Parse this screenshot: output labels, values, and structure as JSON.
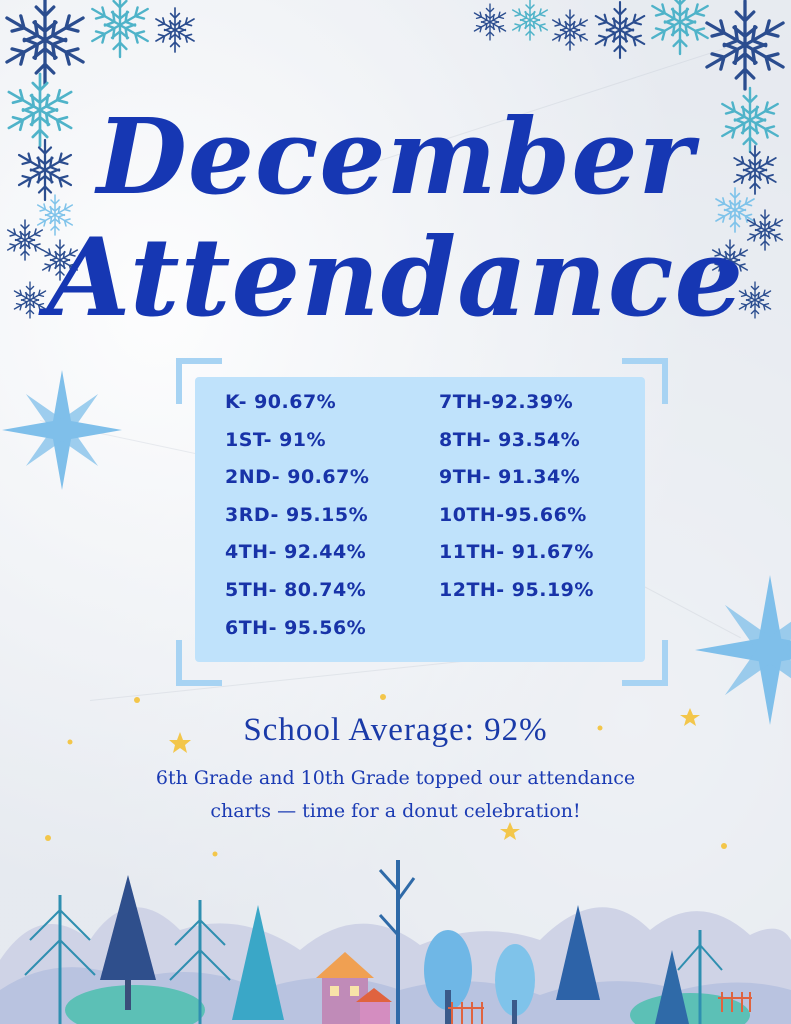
{
  "title": {
    "line1": "December",
    "line2": "Attendance"
  },
  "grades_left": [
    "K- 90.67%",
    "1ST- 91%",
    "2ND- 90.67%",
    "3RD- 95.15%",
    "4TH- 92.44%",
    "5TH- 80.74%",
    "6TH- 95.56%"
  ],
  "grades_right": [
    "7TH-92.39%",
    "8TH- 93.54%",
    "9TH- 91.34%",
    "10TH-95.66%",
    "11TH- 91.67%",
    "12TH- 95.19%"
  ],
  "school_average": "School Average: 92%",
  "note": {
    "line1": "6th Grade and 10th Grade topped our attendance",
    "line2": "charts — time for a donut celebration!"
  },
  "colors": {
    "title": "#1637b3",
    "panel": "#bfe2fb",
    "frame": "#a7d3f3",
    "text": "#1833a8",
    "flake_dark": "#2b4d8f",
    "flake_teal": "#4fb3c9",
    "flake_light": "#7fc3ea"
  },
  "icons": [
    "snowflake-icon",
    "star-icon",
    "moon-icon",
    "tree-icon",
    "house-icon"
  ]
}
